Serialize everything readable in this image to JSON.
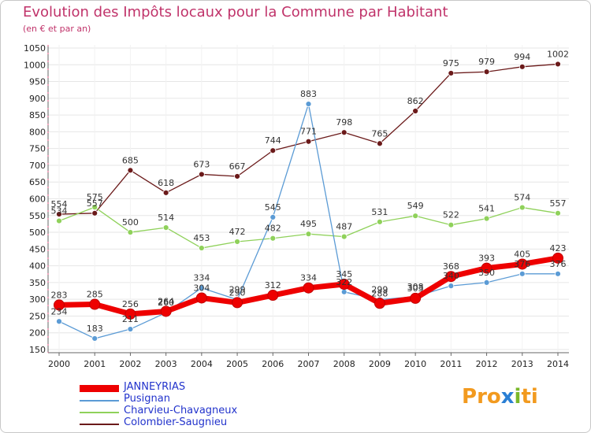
{
  "title": "Evolution des Impôts locaux pour la Commune par Habitant",
  "subtitle": "(en € et par an)",
  "logo": {
    "text": "Proxiti",
    "letters": [
      "P",
      "r",
      "o",
      "x",
      "i",
      "t",
      "i"
    ],
    "colors": [
      "#f29a1f",
      "#f29a1f",
      "#f29a1f",
      "#2a7fd4",
      "#7ab82a",
      "#f29a1f",
      "#f29a1f"
    ]
  },
  "chart_data": {
    "type": "line",
    "title": "Evolution des Impôts locaux pour la Commune par Habitant",
    "ylabel": "(en € et par an)",
    "ylim": [
      150,
      1050
    ],
    "yticks": [
      150,
      200,
      250,
      300,
      350,
      400,
      450,
      500,
      550,
      600,
      650,
      700,
      750,
      800,
      850,
      900,
      950,
      1000,
      1050
    ],
    "x": [
      2000,
      2001,
      2002,
      2003,
      2004,
      2005,
      2006,
      2007,
      2008,
      2009,
      2010,
      2011,
      2012,
      2013,
      2014
    ],
    "series": [
      {
        "name": "Colombier-Saugnieu",
        "color": "#6b1a1a",
        "width": 1.3,
        "marker": 3.5,
        "values": [
          554,
          557,
          685,
          618,
          673,
          667,
          744,
          771,
          798,
          765,
          862,
          975,
          979,
          994,
          1002
        ],
        "labels": [
          "554",
          "557",
          "685",
          "618",
          "673",
          "667",
          "744",
          "771",
          "798",
          "765",
          "862",
          "975",
          "979",
          "994",
          "1002"
        ]
      },
      {
        "name": "Charvieu-Chavagneux",
        "color": "#8fd15a",
        "width": 1.3,
        "marker": 3.5,
        "values": [
          534,
          575,
          500,
          514,
          453,
          472,
          482,
          495,
          487,
          531,
          549,
          522,
          541,
          574,
          557
        ],
        "labels": [
          "534",
          "575",
          "500",
          "514",
          "453",
          "472",
          "482",
          "495",
          "487",
          "531",
          "549",
          "522",
          "541",
          "574",
          "557"
        ]
      },
      {
        "name": "Pusignan",
        "color": "#5b9bd5",
        "width": 1.3,
        "marker": 3.5,
        "values": [
          234,
          183,
          211,
          260,
          334,
          299,
          545,
          883,
          322,
          299,
          308,
          340,
          350,
          376,
          376
        ],
        "labels": [
          "234",
          "183",
          "211",
          "260",
          "334",
          "299",
          "545",
          "883",
          "322",
          "299",
          "308",
          "340",
          "350",
          "376",
          "376"
        ]
      },
      {
        "name": "JANNEYRIAS",
        "color": "#ee0000",
        "width": 7,
        "marker": 6.5,
        "values": [
          283,
          285,
          256,
          264,
          304,
          290,
          312,
          334,
          345,
          288,
          303,
          368,
          393,
          405,
          423
        ],
        "labels": [
          "283",
          "285",
          "256",
          "264",
          "304",
          "290",
          "312",
          "334",
          "345",
          "288",
          "303",
          "368",
          "393",
          "405",
          "423"
        ]
      }
    ],
    "legend": [
      {
        "name": "JANNEYRIAS",
        "color": "#ee0000"
      },
      {
        "name": "Pusignan",
        "color": "#5b9bd5"
      },
      {
        "name": "Charvieu-Chavagneux",
        "color": "#8fd15a"
      },
      {
        "name": "Colombier-Saugnieu",
        "color": "#6b1a1a"
      }
    ]
  }
}
